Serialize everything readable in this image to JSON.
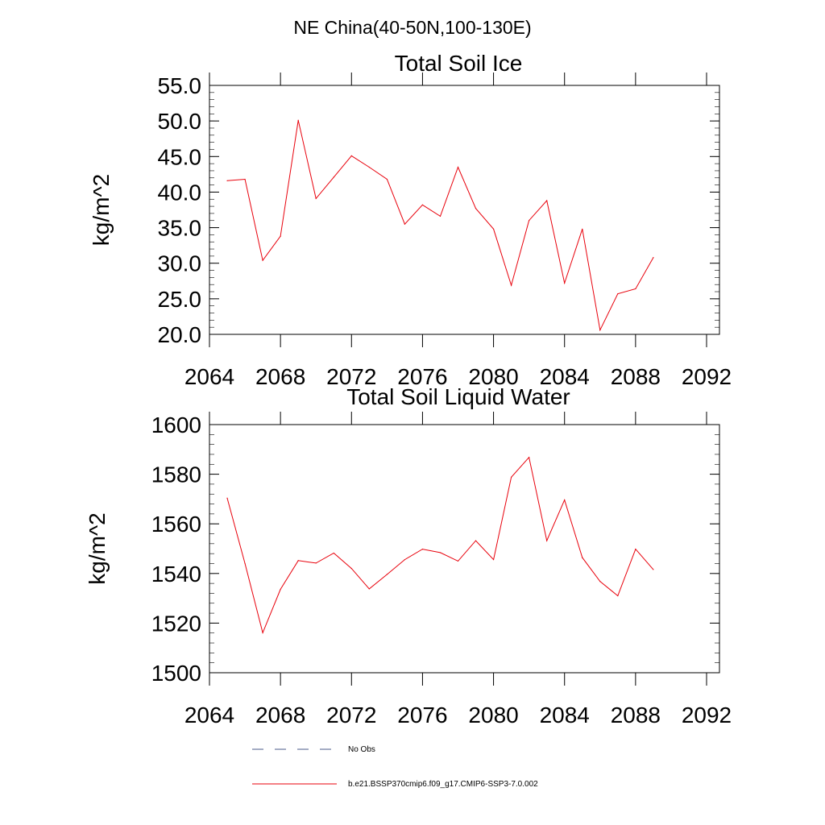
{
  "figure": {
    "title": "NE China(40-50N,100-130E)"
  },
  "legend": {
    "entries": [
      {
        "label": "No Obs",
        "color": "#4a5a8a",
        "dash": true
      },
      {
        "label": "b.e21.BSSP370cmip6.f09_g17.CMIP6-SSP3-7.0.002",
        "color": "#e8000b",
        "dash": false
      }
    ]
  },
  "chart_data": [
    {
      "type": "line",
      "title": "Total Soil Ice",
      "xlabel": "",
      "ylabel": "kg/m^2",
      "xlim": [
        2064,
        2092
      ],
      "ylim": [
        20,
        55
      ],
      "x_ticks": [
        2064,
        2068,
        2072,
        2076,
        2080,
        2084,
        2088,
        2092
      ],
      "x_tick_labels": [
        "2064",
        "2068",
        "2072",
        "2076",
        "2080",
        "2084",
        "2088",
        "2092"
      ],
      "y_ticks": [
        20,
        25,
        30,
        35,
        40,
        45,
        50,
        55
      ],
      "y_tick_labels": [
        "20.0",
        "25.0",
        "30.0",
        "35.0",
        "40.0",
        "45.0",
        "50.0",
        "55.0"
      ],
      "y_minor_step": 1,
      "series": [
        {
          "name": "b.e21.BSSP370cmip6.f09_g17.CMIP6-SSP3-7.0.002",
          "color": "#e8000b",
          "x": [
            2065,
            2066,
            2067,
            2068,
            2069,
            2070,
            2071,
            2072,
            2073,
            2074,
            2075,
            2076,
            2077,
            2078,
            2079,
            2080,
            2081,
            2082,
            2083,
            2084,
            2085,
            2086,
            2087,
            2088,
            2089
          ],
          "y": [
            41.6,
            41.8,
            30.4,
            33.8,
            50.1,
            39.1,
            42.1,
            45.1,
            43.5,
            41.8,
            35.5,
            38.2,
            36.6,
            43.5,
            37.7,
            34.8,
            26.9,
            36.0,
            38.8,
            27.2,
            34.8,
            20.6,
            25.7,
            26.4,
            30.8
          ]
        }
      ]
    },
    {
      "type": "line",
      "title": "Total Soil Liquid Water",
      "xlabel": "",
      "ylabel": "kg/m^2",
      "xlim": [
        2064,
        2092
      ],
      "ylim": [
        1500,
        1600
      ],
      "x_ticks": [
        2064,
        2068,
        2072,
        2076,
        2080,
        2084,
        2088,
        2092
      ],
      "x_tick_labels": [
        "2064",
        "2068",
        "2072",
        "2076",
        "2080",
        "2084",
        "2088",
        "2092"
      ],
      "y_ticks": [
        1500,
        1520,
        1540,
        1560,
        1580,
        1600
      ],
      "y_tick_labels": [
        "1500",
        "1520",
        "1540",
        "1560",
        "1580",
        "1600"
      ],
      "y_minor_step": 4,
      "series": [
        {
          "name": "b.e21.BSSP370cmip6.f09_g17.CMIP6-SSP3-7.0.002",
          "color": "#e8000b",
          "x": [
            2065,
            2066,
            2067,
            2068,
            2069,
            2070,
            2071,
            2072,
            2073,
            2074,
            2075,
            2076,
            2077,
            2078,
            2079,
            2080,
            2081,
            2082,
            2083,
            2084,
            2085,
            2086,
            2087,
            2088,
            2089
          ],
          "y": [
            1570.4,
            1544.0,
            1516.1,
            1533.6,
            1545.2,
            1544.2,
            1548.2,
            1542.0,
            1533.8,
            1539.6,
            1545.6,
            1549.8,
            1548.4,
            1545.0,
            1553.2,
            1545.6,
            1578.8,
            1586.8,
            1553.2,
            1569.6,
            1546.4,
            1536.8,
            1531.0,
            1549.8,
            1541.6
          ]
        }
      ]
    }
  ]
}
